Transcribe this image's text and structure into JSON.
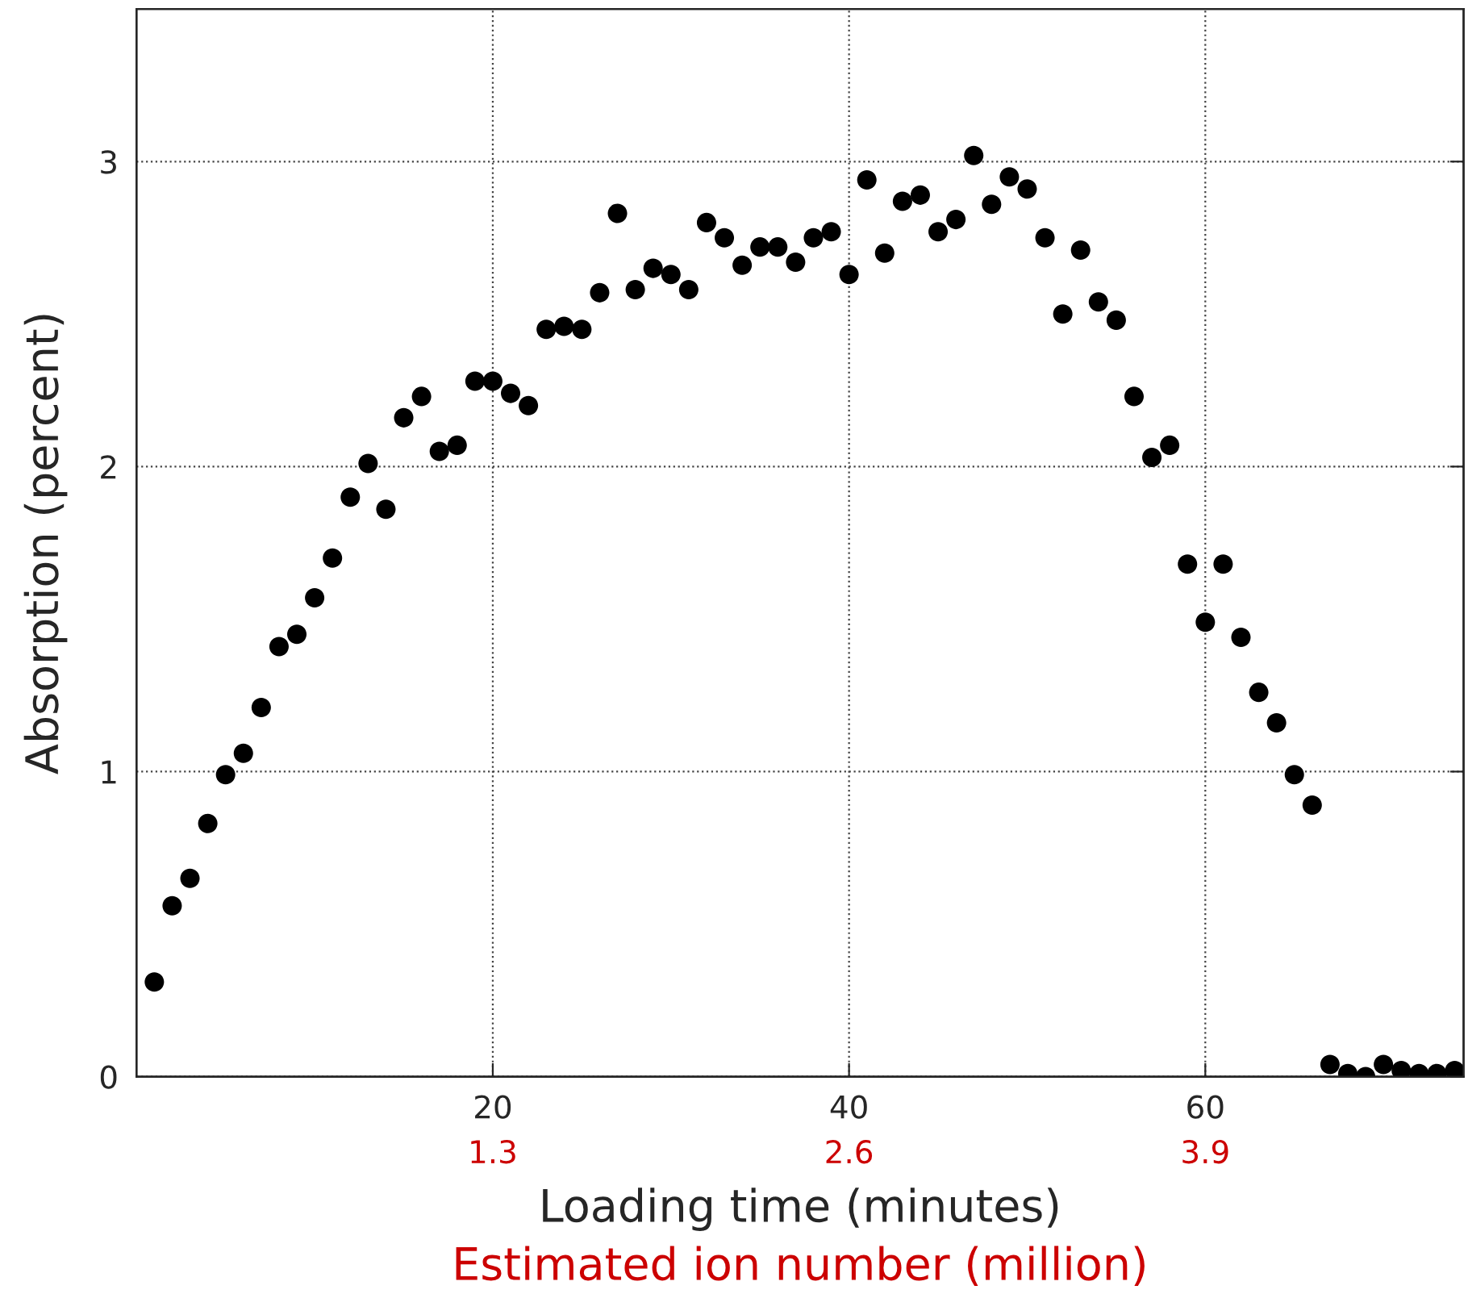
{
  "chart_data": {
    "type": "scatter",
    "xlabel": "Loading time (minutes)",
    "x2label": "Estimated ion number (million)",
    "ylabel": "Absorption (percent)",
    "xlim": [
      0,
      74.5
    ],
    "ylim": [
      0,
      3.5
    ],
    "xticks": [
      20,
      40,
      60
    ],
    "yticks": [
      0,
      1,
      2,
      3
    ],
    "x2lim": [
      0,
      4.8425
    ],
    "x2ticks": [
      1.3,
      2.6,
      3.9
    ],
    "grid": true,
    "marker": "circle",
    "series": [
      {
        "color": "#000000",
        "x": [
          1,
          2,
          3,
          4,
          5,
          6,
          7,
          8,
          9,
          10,
          11,
          12,
          13,
          14,
          15,
          16,
          17,
          18,
          19,
          20,
          21,
          22,
          23,
          24,
          25,
          26,
          27,
          28,
          29,
          30,
          31,
          32,
          33,
          34,
          35,
          36,
          37,
          38,
          39,
          40,
          41,
          42,
          43,
          44,
          45,
          46,
          47,
          48,
          49,
          50,
          51,
          52,
          53,
          54,
          55,
          56,
          57,
          58,
          59,
          60,
          61,
          62,
          63,
          64,
          65,
          66,
          67,
          68,
          69,
          70,
          71,
          72,
          73,
          74
        ],
        "values": [
          0.31,
          0.56,
          0.65,
          0.83,
          0.99,
          1.06,
          1.21,
          1.41,
          1.45,
          1.57,
          1.7,
          1.9,
          2.01,
          1.86,
          2.16,
          2.23,
          2.05,
          2.07,
          2.28,
          2.28,
          2.24,
          2.2,
          2.45,
          2.46,
          2.45,
          2.57,
          2.83,
          2.58,
          2.65,
          2.63,
          2.58,
          2.8,
          2.75,
          2.66,
          2.72,
          2.72,
          2.67,
          2.75,
          2.77,
          2.63,
          2.94,
          2.7,
          2.87,
          2.89,
          2.77,
          2.81,
          3.02,
          2.86,
          2.95,
          2.91,
          2.75,
          2.5,
          2.71,
          2.54,
          2.48,
          2.23,
          2.03,
          2.07,
          1.68,
          1.49,
          1.68,
          1.44,
          1.26,
          1.16,
          0.99,
          0.89,
          0.04,
          0.01,
          0.0,
          0.04,
          0.02,
          0.01,
          0.01,
          0.02
        ]
      }
    ]
  }
}
